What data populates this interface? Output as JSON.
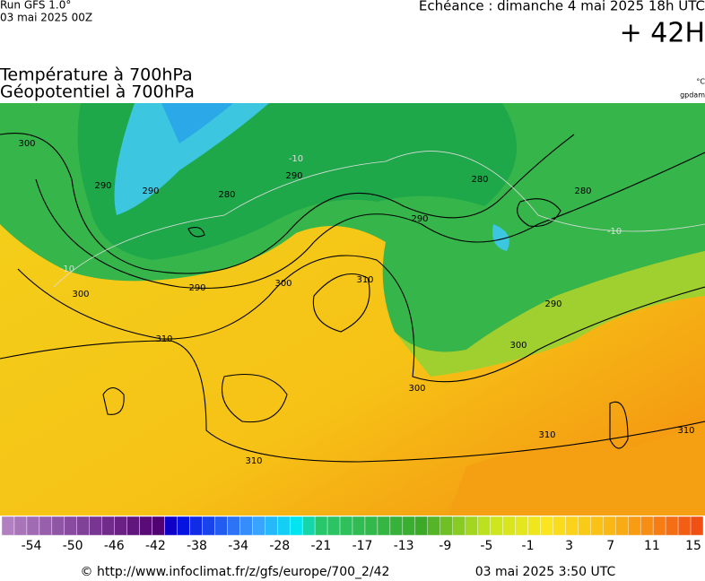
{
  "header": {
    "run": "Run GFS 1.0°",
    "run_date": "03 mai 2025 00Z",
    "valid": "Echéance : dimanche 4 mai 2025 18h UTC",
    "lead": "+ 42H",
    "title_1": "Température à 700hPa",
    "title_2": "Géopotentiel à 700hPa",
    "unit_temp": "°C",
    "unit_geo": "gpdam"
  },
  "map": {
    "contour_labels": [
      "300",
      "290",
      "290",
      "280",
      "290",
      "290",
      "280",
      "280",
      "290",
      "300",
      "310",
      "300",
      "310",
      "300",
      "290",
      "300",
      "310",
      "310",
      "310",
      "-10",
      "-10",
      "-10"
    ]
  },
  "colorbar": {
    "labels": [
      -54,
      -50,
      -46,
      -42,
      -38,
      -34,
      -28,
      -21,
      -17,
      -13,
      -9,
      -5,
      -1,
      3,
      7,
      11,
      15
    ]
  },
  "footer": {
    "url": "© http://www.infoclimat.fr/z/gfs/europe/700_2/42",
    "time": "03 mai 2025  3:50 UTC"
  }
}
